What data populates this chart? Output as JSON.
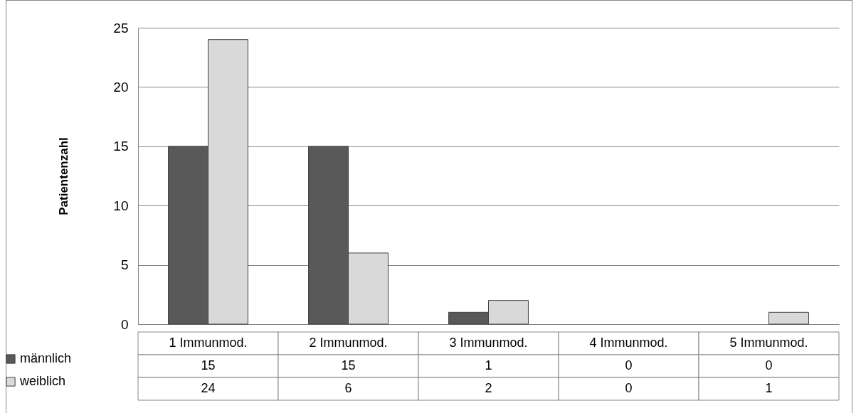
{
  "chart_data": {
    "type": "bar",
    "ylabel": "Patientenzahl",
    "categories": [
      "1 Immunmod.",
      "2 Immunmod.",
      "3 Immunmod.",
      "4 Immunmod.",
      "5 Immunmod."
    ],
    "series": [
      {
        "name": "männlich",
        "color": "#595959",
        "values": [
          15,
          15,
          1,
          0,
          0
        ]
      },
      {
        "name": "weiblich",
        "color": "#d9d9d9",
        "values": [
          24,
          6,
          2,
          0,
          1
        ]
      }
    ],
    "ylim": [
      0,
      25
    ],
    "yticks": [
      0,
      5,
      10,
      15,
      20,
      25
    ],
    "grid": "y",
    "legend": "bottom left",
    "data_labels": true
  }
}
